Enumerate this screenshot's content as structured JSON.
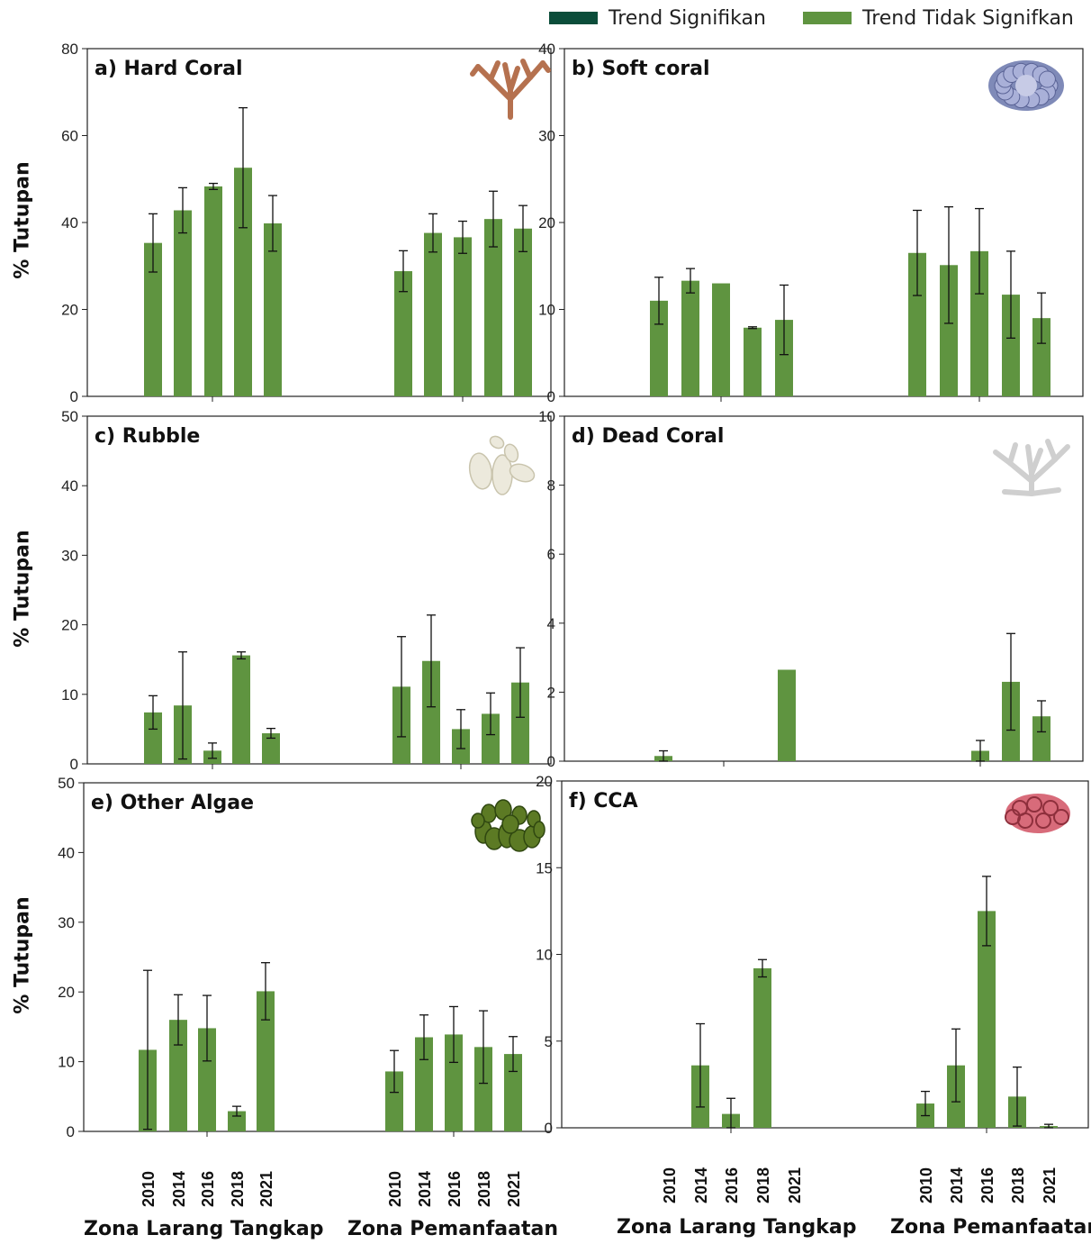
{
  "legend": {
    "significant": {
      "label": "Trend Signifikan",
      "color": "#0b4d3a"
    },
    "not_significant": {
      "label": "Trend Tidak Signifkan",
      "color": "#5f9440"
    }
  },
  "y_axis_label": "% Tutupan",
  "x_group_titles": [
    "Zona Larang Tangkap",
    "Zona Pemanfaatan"
  ],
  "chart_data": [
    {
      "type": "bar",
      "title": "a) Hard Coral",
      "icon": "hard-coral-icon",
      "ylim": [
        0,
        80
      ],
      "yticks": [
        0,
        20,
        40,
        60,
        80
      ],
      "groups": [
        {
          "name": "Zona Larang Tangkap",
          "years": [
            "2010",
            "2014",
            "2016",
            "2018",
            "2021"
          ],
          "values": [
            35.3,
            42.8,
            48.3,
            52.6,
            39.8
          ],
          "errors": [
            6.7,
            5.2,
            0.7,
            13.8,
            6.4
          ]
        },
        {
          "name": "Zona Pemanfaatan",
          "years": [
            "2010",
            "2014",
            "2016",
            "2018",
            "2021"
          ],
          "values": [
            28.8,
            37.6,
            36.6,
            40.8,
            38.6
          ],
          "errors": [
            4.7,
            4.4,
            3.7,
            6.4,
            5.3
          ]
        }
      ]
    },
    {
      "type": "bar",
      "title": "b) Soft coral",
      "icon": "soft-coral-icon",
      "ylim": [
        0,
        40
      ],
      "yticks": [
        0,
        10,
        20,
        30,
        40
      ],
      "groups": [
        {
          "name": "Zona Larang Tangkap",
          "years": [
            "2010",
            "2014",
            "2016",
            "2018",
            "2021"
          ],
          "values": [
            11.0,
            13.3,
            13.0,
            7.9,
            8.8
          ],
          "errors": [
            2.7,
            1.4,
            0,
            0.1,
            4.0
          ]
        },
        {
          "name": "Zona Pemanfaatan",
          "years": [
            "2010",
            "2014",
            "2016",
            "2018",
            "2021"
          ],
          "values": [
            16.5,
            15.1,
            16.7,
            11.7,
            9.0
          ],
          "errors": [
            4.9,
            6.7,
            4.9,
            5.0,
            2.9
          ]
        }
      ]
    },
    {
      "type": "bar",
      "title": "c) Rubble",
      "icon": "rubble-icon",
      "ylim": [
        0,
        50
      ],
      "yticks": [
        0,
        10,
        20,
        30,
        40,
        50
      ],
      "groups": [
        {
          "name": "Zona Larang Tangkap",
          "years": [
            "2010",
            "2014",
            "2016",
            "2018",
            "2021"
          ],
          "values": [
            7.4,
            8.4,
            1.9,
            15.6,
            4.4
          ],
          "errors": [
            2.4,
            7.7,
            1.1,
            0.5,
            0.7
          ]
        },
        {
          "name": "Zona Pemanfaatan",
          "years": [
            "2010",
            "2014",
            "2016",
            "2018",
            "2021"
          ],
          "values": [
            11.1,
            14.8,
            5.0,
            7.2,
            11.7
          ],
          "errors": [
            7.2,
            6.6,
            2.8,
            3.0,
            5.0
          ]
        }
      ]
    },
    {
      "type": "bar",
      "title": "d) Dead Coral",
      "icon": "dead-coral-icon",
      "ylim": [
        0,
        10
      ],
      "yticks": [
        0,
        2,
        4,
        6,
        8,
        10
      ],
      "groups": [
        {
          "name": "Zona Larang Tangkap",
          "years": [
            "2010",
            "2014",
            "2016",
            "2018",
            "2021"
          ],
          "values": [
            0.15,
            0,
            0,
            0,
            2.65
          ],
          "errors": [
            0.15,
            0,
            0,
            0,
            0
          ]
        },
        {
          "name": "Zona Pemanfaatan",
          "years": [
            "2010",
            "2014",
            "2016",
            "2018",
            "2021"
          ],
          "values": [
            0,
            0,
            0.3,
            2.3,
            1.3
          ],
          "errors": [
            0,
            0,
            0.3,
            1.4,
            0.45
          ]
        }
      ]
    },
    {
      "type": "bar",
      "title": "e) Other Algae",
      "icon": "algae-icon",
      "ylim": [
        0,
        50
      ],
      "yticks": [
        0,
        10,
        20,
        30,
        40,
        50
      ],
      "groups": [
        {
          "name": "Zona Larang Tangkap",
          "years": [
            "2010",
            "2014",
            "2016",
            "2018",
            "2021"
          ],
          "values": [
            11.7,
            16.0,
            14.8,
            2.9,
            20.1
          ],
          "errors": [
            11.4,
            3.6,
            4.7,
            0.7,
            4.1
          ]
        },
        {
          "name": "Zona Pemanfaatan",
          "years": [
            "2010",
            "2014",
            "2016",
            "2018",
            "2021"
          ],
          "values": [
            8.6,
            13.5,
            13.9,
            12.1,
            11.1
          ],
          "errors": [
            3.0,
            3.2,
            4.0,
            5.2,
            2.5
          ]
        }
      ]
    },
    {
      "type": "bar",
      "title": "f) CCA",
      "icon": "cca-icon",
      "ylim": [
        0,
        20
      ],
      "yticks": [
        0,
        5,
        10,
        15,
        20
      ],
      "groups": [
        {
          "name": "Zona Larang Tangkap",
          "years": [
            "2010",
            "2014",
            "2016",
            "2018",
            "2021"
          ],
          "values": [
            0,
            3.6,
            0.8,
            9.2,
            0
          ],
          "errors": [
            0,
            2.4,
            0.9,
            0.5,
            0
          ]
        },
        {
          "name": "Zona Pemanfaatan",
          "years": [
            "2010",
            "2014",
            "2016",
            "2018",
            "2021"
          ],
          "values": [
            1.4,
            3.6,
            12.5,
            1.8,
            0.1
          ],
          "errors": [
            0.7,
            2.1,
            2.0,
            1.7,
            0.1
          ]
        }
      ]
    }
  ]
}
